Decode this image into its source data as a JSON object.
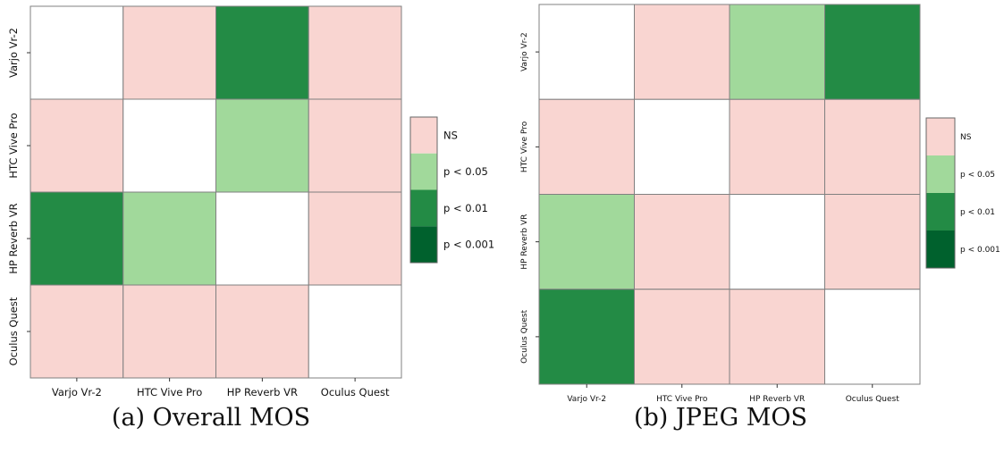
{
  "figure": {
    "captions": [
      "(a) Overall MOS",
      "(b) JPEG MOS"
    ]
  },
  "legend": {
    "levels": [
      "NS",
      "p < 0.05",
      "p < 0.01",
      "p < 0.001"
    ],
    "colors": [
      "#f9d5d1",
      "#a1d99b",
      "#238b45",
      "#00612d"
    ]
  },
  "chart_data": [
    {
      "type": "heatmap",
      "caption": "(a) Overall MOS",
      "x_categories": [
        "Varjo Vr-2",
        "HTC Vive Pro",
        "HP Reverb VR",
        "Oculus Quest"
      ],
      "y_categories": [
        "Varjo Vr-2",
        "HTC Vive Pro",
        "HP Reverb VR",
        "Oculus Quest"
      ],
      "cells": [
        [
          "",
          "NS",
          "p < 0.01",
          "NS"
        ],
        [
          "NS",
          "",
          "p < 0.05",
          "NS"
        ],
        [
          "p < 0.01",
          "p < 0.05",
          "",
          "NS"
        ],
        [
          "NS",
          "NS",
          "NS",
          ""
        ]
      ],
      "diagonal_color": "#ffffff"
    },
    {
      "type": "heatmap",
      "caption": "(b) JPEG MOS",
      "x_categories": [
        "Varjo Vr-2",
        "HTC Vive Pro",
        "HP Reverb VR",
        "Oculus Quest"
      ],
      "y_categories": [
        "Varjo Vr-2",
        "HTC Vive Pro",
        "HP Reverb VR",
        "Oculus Quest"
      ],
      "cells": [
        [
          "",
          "NS",
          "p < 0.05",
          "p < 0.01"
        ],
        [
          "NS",
          "",
          "NS",
          "NS"
        ],
        [
          "p < 0.05",
          "NS",
          "",
          "NS"
        ],
        [
          "p < 0.01",
          "NS",
          "NS",
          ""
        ]
      ],
      "diagonal_color": "#ffffff"
    }
  ]
}
